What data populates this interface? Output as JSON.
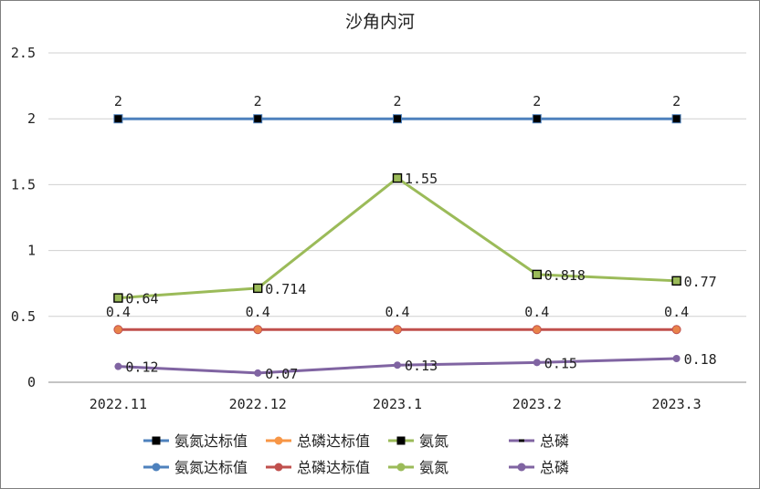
{
  "chart_data": {
    "type": "line",
    "title": "沙角内河",
    "categories": [
      "2022.11",
      "2022.12",
      "2023.1",
      "2023.2",
      "2023.3"
    ],
    "y_ticks": [
      "0",
      "0.5",
      "1",
      "1.5",
      "2",
      "2.5"
    ],
    "ylim": [
      0,
      2.5
    ],
    "grid": "horizontal",
    "legend_position": "bottom",
    "series": [
      {
        "name": "氨氮达标值",
        "values": [
          2,
          2,
          2,
          2,
          2
        ],
        "labels": [
          "2",
          "2",
          "2",
          "2",
          "2"
        ],
        "color": "#4e81bd",
        "marker": "square-black"
      },
      {
        "name": "总磷达标值",
        "values": [
          0.4,
          0.4,
          0.4,
          0.4,
          0.4
        ],
        "labels": [
          "0.4",
          "0.4",
          "0.4",
          "0.4",
          "0.4"
        ],
        "color": "#c0504d",
        "marker": "circle-orange"
      },
      {
        "name": "氨氮",
        "values": [
          0.64,
          0.714,
          1.55,
          0.818,
          0.77
        ],
        "labels": [
          "0.64",
          "0.714",
          "1.55",
          "0.818",
          "0.77"
        ],
        "color": "#9bbb59",
        "marker": "square-green"
      },
      {
        "name": "总磷",
        "values": [
          0.12,
          0.07,
          0.13,
          0.15,
          0.18
        ],
        "labels": [
          "0.12",
          "0.07",
          "0.13",
          "0.15",
          "0.18"
        ],
        "color": "#8064a2",
        "marker": "circle-purple"
      }
    ],
    "legend_rows": [
      [
        {
          "label": "氨氮达标值",
          "line": "#4e81bd",
          "marker": "square",
          "marker_color": "#000000"
        },
        {
          "label": "总磷达标值",
          "line": "#f79646",
          "marker": "circle",
          "marker_color": "#f79646"
        },
        {
          "label": "氨氮",
          "line": "#9bbb59",
          "marker": "square",
          "marker_color": "#000000"
        },
        {
          "label": "总磷",
          "line": "#8064a2",
          "marker": "dash",
          "marker_color": "#000000"
        }
      ],
      [
        {
          "label": "氨氮达标值",
          "line": "#4e81bd",
          "marker": "circle",
          "marker_color": "#4e81bd"
        },
        {
          "label": "总磷达标值",
          "line": "#c0504d",
          "marker": "circle",
          "marker_color": "#c0504d"
        },
        {
          "label": "氨氮",
          "line": "#9bbb59",
          "marker": "circle",
          "marker_color": "#9bbb59"
        },
        {
          "label": "总磷",
          "line": "#8064a2",
          "marker": "circle",
          "marker_color": "#8064a2"
        }
      ]
    ]
  }
}
